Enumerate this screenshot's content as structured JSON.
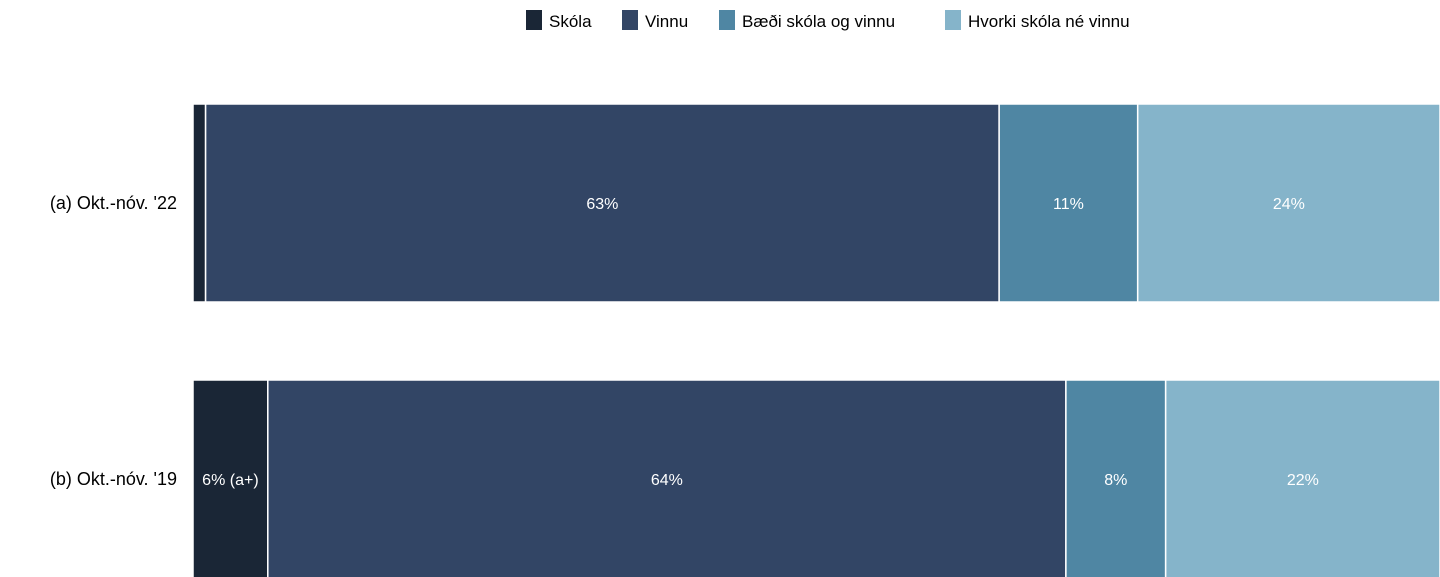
{
  "chart_data": {
    "type": "bar",
    "orientation": "horizontal",
    "stacked": true,
    "normalized": true,
    "categories": [
      "(a) Okt.-nóv. '22",
      "(b) Okt.-nóv. '19"
    ],
    "series": [
      {
        "name": "Skóla",
        "color": "#1a2636",
        "values": [
          1,
          6
        ],
        "labels": [
          "",
          "6% (a+)"
        ]
      },
      {
        "name": "Vinnu",
        "color": "#324565",
        "values": [
          63,
          64
        ],
        "labels": [
          "63%",
          "64%"
        ]
      },
      {
        "name": "Bæði skóla og vinnu",
        "color": "#4f86a3",
        "values": [
          11,
          8
        ],
        "labels": [
          "11%",
          "8%"
        ]
      },
      {
        "name": "Hvorki skóla né vinnu",
        "color": "#85b4ca",
        "values": [
          24,
          22
        ],
        "labels": [
          "24%",
          "22%"
        ]
      }
    ],
    "legend_position": "top",
    "grid": false
  }
}
